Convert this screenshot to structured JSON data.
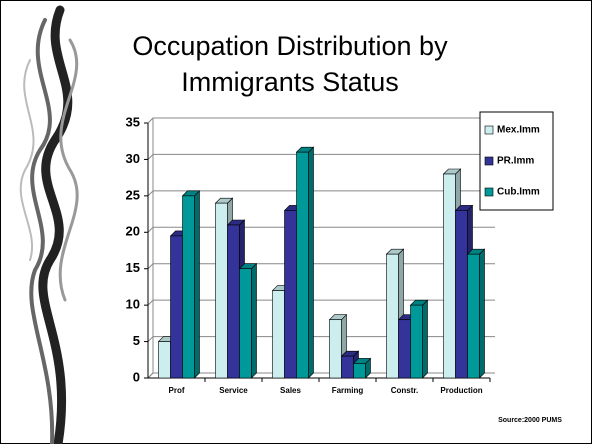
{
  "chart_data": {
    "type": "bar",
    "title": "Occupation Distribution by Immigrants Status",
    "categories": [
      "Prof",
      "Service",
      "Sales",
      "Farming",
      "Constr.",
      "Production"
    ],
    "series": [
      {
        "name": "Mex.Imm",
        "color": "#cceeee",
        "values": [
          5,
          24,
          12,
          8,
          17,
          28
        ]
      },
      {
        "name": "PR.Imm",
        "color": "#333399",
        "values": [
          19.5,
          21,
          23,
          3,
          8,
          23
        ]
      },
      {
        "name": "Cub.Imm",
        "color": "#009999",
        "values": [
          25,
          15,
          31,
          2,
          10,
          17
        ]
      }
    ],
    "ylim": [
      0,
      35
    ],
    "yticks": [
      0,
      5,
      10,
      15,
      20,
      25,
      30,
      35
    ],
    "grid": true,
    "legend": "right",
    "source": "Source:2000 PUMS"
  }
}
